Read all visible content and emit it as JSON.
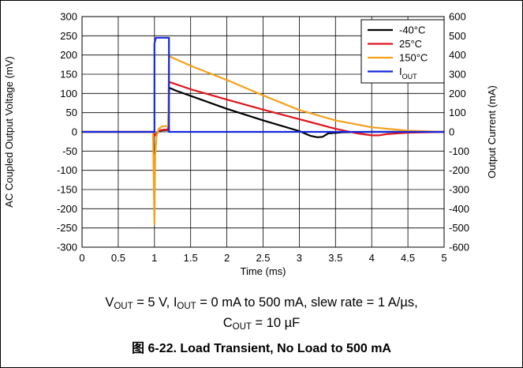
{
  "chart_data": {
    "type": "line",
    "xlabel": "Time (ms)",
    "ylabel": "AC Coupled Output Voltage (mV)",
    "ylabel_right": "Output Current (mA)",
    "xlim": [
      0,
      5
    ],
    "ylim": [
      -300,
      300
    ],
    "ylim_right": [
      -600,
      600
    ],
    "x_ticks": [
      "0",
      "0.5",
      "1",
      "1.5",
      "2",
      "2.5",
      "3",
      "3.5",
      "4",
      "4.5",
      "5"
    ],
    "y_ticks": [
      "300",
      "250",
      "200",
      "150",
      "100",
      "50",
      "0",
      "-50",
      "-100",
      "-150",
      "-200",
      "-250",
      "-300"
    ],
    "y_ticks_right": [
      "600",
      "500",
      "400",
      "300",
      "200",
      "100",
      "0",
      "-100",
      "-200",
      "-300",
      "-400",
      "-500",
      "-600"
    ],
    "grid": true,
    "legend_position": "top-right",
    "legend": [
      {
        "label": "-40°C",
        "color": "#000000"
      },
      {
        "label": "25°C",
        "color": "#e0141e"
      },
      {
        "label": "150°C",
        "color": "#f5a01a"
      },
      {
        "label": "I",
        "sub": "OUT",
        "color": "#1428e0"
      }
    ],
    "series": [
      {
        "name": "-40°C",
        "color": "#000000",
        "axis": "left",
        "x": [
          0,
          0.98,
          1.0,
          1.03,
          1.06,
          1.1,
          1.15,
          1.19,
          1.2,
          1.3,
          1.6,
          2.0,
          2.5,
          3.0,
          3.15,
          3.25,
          3.32,
          3.4,
          3.6,
          4.0,
          4.5,
          5.0
        ],
        "y": [
          0,
          0,
          -10,
          -4,
          2,
          4,
          5,
          5,
          115,
          107,
          87,
          60,
          30,
          2,
          -10,
          -14,
          -13,
          -4,
          -1,
          0,
          0,
          0
        ]
      },
      {
        "name": "25°C",
        "color": "#e0141e",
        "axis": "left",
        "x": [
          0,
          0.98,
          1.0,
          1.03,
          1.06,
          1.1,
          1.15,
          1.19,
          1.2,
          1.5,
          2.0,
          2.5,
          3.0,
          3.5,
          3.8,
          4.0,
          4.1,
          4.2,
          4.5,
          5.0
        ],
        "y": [
          0,
          0,
          -10,
          -4,
          3,
          5,
          6,
          6,
          130,
          111,
          84,
          58,
          33,
          8,
          -4,
          -9,
          -9,
          -6,
          -2,
          0
        ]
      },
      {
        "name": "150°C",
        "color": "#f5a01a",
        "axis": "left",
        "x": [
          0,
          0.98,
          1.0,
          1.01,
          1.03,
          1.06,
          1.1,
          1.15,
          1.19,
          1.2,
          1.5,
          2.0,
          2.5,
          3.0,
          3.5,
          4.0,
          4.5,
          5.0
        ],
        "y": [
          0,
          0,
          -240,
          -60,
          -10,
          8,
          14,
          15,
          15,
          197,
          172,
          135,
          95,
          57,
          30,
          12,
          3,
          0
        ]
      },
      {
        "name": "IOUT",
        "color": "#1428e0",
        "axis": "right",
        "x": [
          0,
          1.0,
          1.0,
          1.02,
          1.2,
          1.2,
          5.0
        ],
        "y": [
          0,
          0,
          460,
          490,
          490,
          0,
          0
        ]
      }
    ]
  },
  "conditions": {
    "line1": [
      {
        "t": "V"
      },
      {
        "sub": "OUT"
      },
      {
        "t": " = 5 V, I"
      },
      {
        "sub": "OUT"
      },
      {
        "t": " = 0 mA to 500 mA, slew rate = 1 A/µs,"
      }
    ],
    "line2": [
      {
        "t": "C"
      },
      {
        "sub": "OUT"
      },
      {
        "t": " = 10 µF"
      }
    ]
  },
  "caption": "图 6-22. Load Transient, No Load to 500 mA"
}
